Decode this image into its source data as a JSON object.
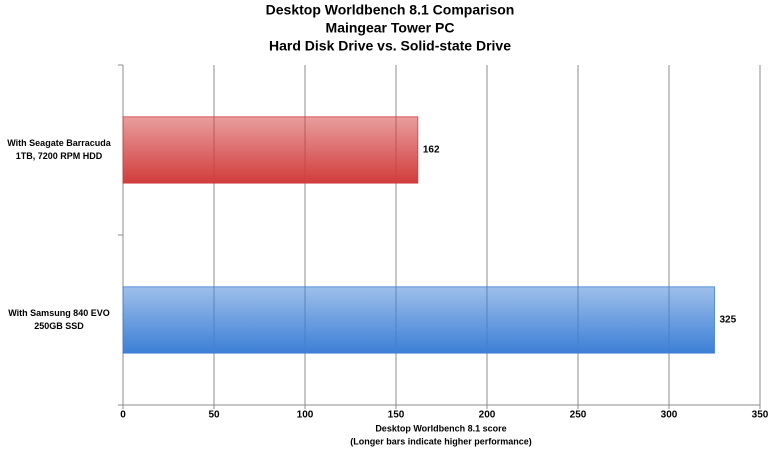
{
  "chart_data": {
    "type": "bar",
    "orientation": "horizontal",
    "title": "Desktop Worldbench 8.1 Comparison",
    "subtitle": [
      "Maingear Tower PC",
      "Hard Disk Drive vs. Solid-state Drive"
    ],
    "categories": [
      "With Seagate Barracuda\n1TB, 7200 RPM HDD",
      "With Samsung 840 EVO\n250GB SSD"
    ],
    "values": [
      162,
      325
    ],
    "colors": [
      "#d23c3c",
      "#3c7fd6"
    ],
    "xlabel": "Desktop Worldbench 8.1 score",
    "xlabel_note": "(Longer bars indicate higher performance)",
    "xlim": [
      0,
      350
    ],
    "xticks": [
      0,
      50,
      100,
      150,
      200,
      250,
      300,
      350
    ],
    "grid": true
  }
}
